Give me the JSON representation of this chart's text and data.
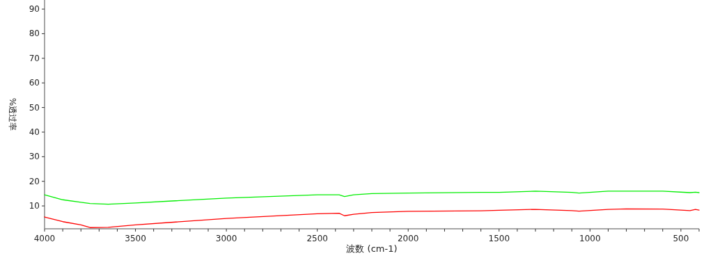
{
  "chart_data": {
    "type": "line",
    "xlabel": "波数 (cm-1)",
    "ylabel": "%透过率",
    "xlim": [
      4000,
      400
    ],
    "ylim": [
      0.7,
      93.7
    ],
    "xticks": [
      4000,
      {
        "value": 3900,
        "label": null
      },
      {
        "value": 3800,
        "label": null
      },
      {
        "value": 3700,
        "label": null
      },
      {
        "value": 3600,
        "label": null
      },
      3500,
      {
        "value": 3400,
        "label": null
      },
      {
        "value": 3300,
        "label": null
      },
      {
        "value": 3200,
        "label": null
      },
      {
        "value": 3100,
        "label": null
      },
      3000,
      {
        "value": 2900,
        "label": null
      },
      {
        "value": 2800,
        "label": null
      },
      {
        "value": 2700,
        "label": null
      },
      {
        "value": 2600,
        "label": null
      },
      2500,
      {
        "value": 2400,
        "label": null
      },
      {
        "value": 2300,
        "label": null
      },
      {
        "value": 2200,
        "label": null
      },
      {
        "value": 2100,
        "label": null
      },
      2000,
      {
        "value": 1900,
        "label": null
      },
      {
        "value": 1800,
        "label": null
      },
      {
        "value": 1700,
        "label": null
      },
      {
        "value": 1600,
        "label": null
      },
      1500,
      {
        "value": 1400,
        "label": null
      },
      {
        "value": 1300,
        "label": null
      },
      {
        "value": 1200,
        "label": null
      },
      {
        "value": 1100,
        "label": null
      },
      1000,
      {
        "value": 900,
        "label": null
      },
      {
        "value": 800,
        "label": null
      },
      {
        "value": 700,
        "label": null
      },
      {
        "value": 600,
        "label": null
      },
      500,
      {
        "value": 400,
        "label": null
      }
    ],
    "yticks": [
      10,
      20,
      30,
      40,
      50,
      60,
      70,
      80,
      90
    ],
    "grid": false,
    "marker": "none",
    "line_style": "solid",
    "x": [
      4000,
      3900,
      3800,
      3750,
      3650,
      3500,
      3000,
      2500,
      2380,
      2350,
      2300,
      2200,
      2000,
      1600,
      1500,
      1300,
      1100,
      1060,
      900,
      800,
      600,
      450,
      420,
      400
    ],
    "series": [
      {
        "color": "#00ee00",
        "values": [
          14.5,
          12.5,
          11.5,
          11,
          10.7,
          11.2,
          13.2,
          14.5,
          14.5,
          13.8,
          14.5,
          15,
          15.2,
          15.5,
          15.5,
          16,
          15.5,
          15.2,
          16,
          16,
          16,
          15.4,
          15.6,
          15.4
        ]
      },
      {
        "color": "#ff0000",
        "values": [
          5.5,
          3.6,
          2.3,
          1.2,
          1.3,
          2.3,
          4.9,
          6.8,
          7,
          6,
          6.6,
          7.3,
          7.8,
          8,
          8.2,
          8.6,
          8.1,
          7.9,
          8.6,
          8.8,
          8.7,
          8.1,
          8.6,
          8.3
        ]
      }
    ]
  }
}
